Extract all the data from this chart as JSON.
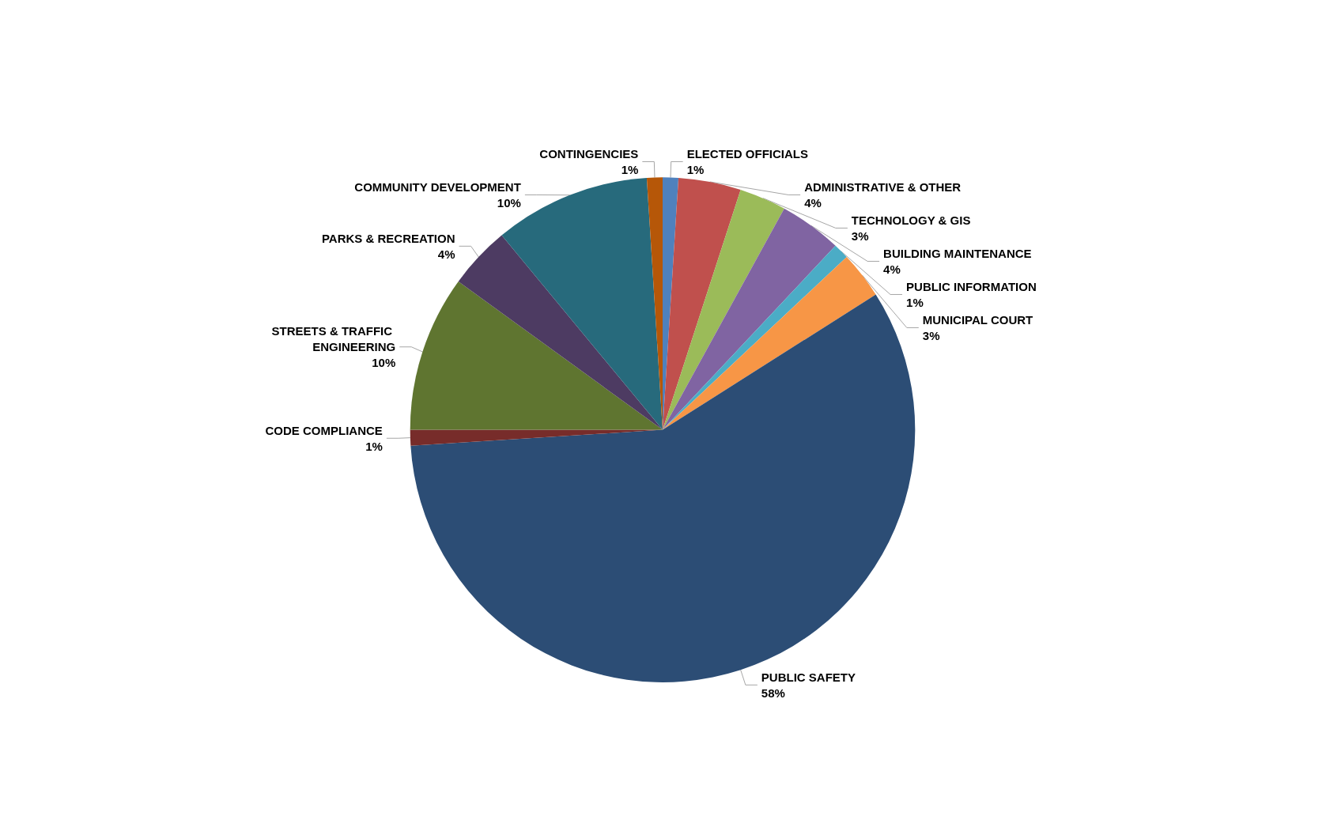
{
  "chart_data": {
    "type": "pie",
    "categories": [
      "ELECTED OFFICIALS",
      "ADMINISTRATIVE & OTHER",
      "TECHNOLOGY & GIS",
      "BUILDING MAINTENANCE",
      "PUBLIC INFORMATION",
      "MUNICIPAL COURT",
      "PUBLIC SAFETY",
      "CODE COMPLIANCE",
      "STREETS & TRAFFIC ENGINEERING",
      "PARKS & RECREATION",
      "COMMUNITY DEVELOPMENT",
      "CONTINGENCIES"
    ],
    "values": [
      1,
      4,
      3,
      4,
      1,
      3,
      58,
      1,
      10,
      4,
      10,
      1
    ],
    "value_labels": [
      "1%",
      "4%",
      "3%",
      "4%",
      "1%",
      "3%",
      "58%",
      "1%",
      "10%",
      "4%",
      "10%",
      "1%"
    ],
    "colors": [
      "#4f81bd",
      "#c0504d",
      "#9bbb59",
      "#8064a2",
      "#4bacc6",
      "#f79646",
      "#2c4d75",
      "#772c2a",
      "#5f7530",
      "#4d3b62",
      "#276a7c",
      "#b65708"
    ],
    "legend": false
  }
}
